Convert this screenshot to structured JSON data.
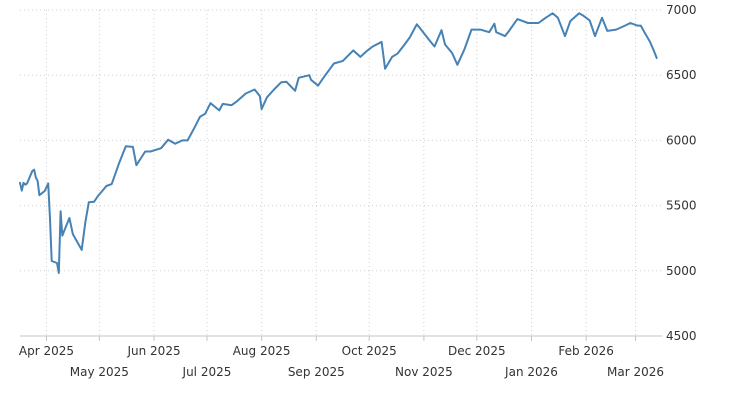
{
  "chart_data": {
    "type": "line",
    "title": "",
    "xlabel": "",
    "ylabel": "",
    "ylim": [
      4500,
      7000
    ],
    "yticks": [
      4500,
      5000,
      5500,
      6000,
      6500,
      7000
    ],
    "grid": true,
    "y_axis_side": "right",
    "series_color": "#4682b4",
    "xlim": [
      "2025-03-17",
      "2026-03-16"
    ],
    "xticks": [
      {
        "date": "2025-04-01",
        "label": "Apr 2025",
        "row": 1
      },
      {
        "date": "2025-05-01",
        "label": "May 2025",
        "row": 2
      },
      {
        "date": "2025-06-01",
        "label": "Jun 2025",
        "row": 1
      },
      {
        "date": "2025-07-01",
        "label": "Jul 2025",
        "row": 2
      },
      {
        "date": "2025-08-01",
        "label": "Aug 2025",
        "row": 1
      },
      {
        "date": "2025-09-01",
        "label": "Sep 2025",
        "row": 2
      },
      {
        "date": "2025-10-01",
        "label": "Oct 2025",
        "row": 1
      },
      {
        "date": "2025-11-01",
        "label": "Nov 2025",
        "row": 2
      },
      {
        "date": "2025-12-01",
        "label": "Dec 2025",
        "row": 1
      },
      {
        "date": "2026-01-01",
        "label": "Jan 2026",
        "row": 2
      },
      {
        "date": "2026-02-01",
        "label": "Feb 2026",
        "row": 1
      },
      {
        "date": "2026-03-01",
        "label": "Mar 2026",
        "row": 2
      }
    ],
    "series": [
      {
        "x": [
          "2025-03-17",
          "2025-03-18",
          "2025-03-19",
          "2025-03-20",
          "2025-03-21",
          "2025-03-24",
          "2025-03-25",
          "2025-03-26",
          "2025-03-27",
          "2025-03-28",
          "2025-03-31",
          "2025-04-02",
          "2025-04-03",
          "2025-04-04",
          "2025-04-07",
          "2025-04-08",
          "2025-04-09",
          "2025-04-10",
          "2025-04-14",
          "2025-04-16",
          "2025-04-21",
          "2025-04-23",
          "2025-04-25",
          "2025-04-28",
          "2025-04-30",
          "2025-05-05",
          "2025-05-08",
          "2025-05-12",
          "2025-05-16",
          "2025-05-20",
          "2025-05-22",
          "2025-05-27",
          "2025-05-30",
          "2025-06-05",
          "2025-06-09",
          "2025-06-13",
          "2025-06-17",
          "2025-06-20",
          "2025-06-24",
          "2025-06-27",
          "2025-06-30",
          "2025-07-03",
          "2025-07-08",
          "2025-07-10",
          "2025-07-15",
          "2025-07-18",
          "2025-07-23",
          "2025-07-28",
          "2025-07-31",
          "2025-08-01",
          "2025-08-04",
          "2025-08-08",
          "2025-08-12",
          "2025-08-15",
          "2025-08-20",
          "2025-08-22",
          "2025-08-28",
          "2025-08-29",
          "2025-09-02",
          "2025-09-05",
          "2025-09-11",
          "2025-09-16",
          "2025-09-22",
          "2025-09-26",
          "2025-09-30",
          "2025-10-03",
          "2025-10-08",
          "2025-10-10",
          "2025-10-14",
          "2025-10-17",
          "2025-10-21",
          "2025-10-24",
          "2025-10-28",
          "2025-10-31",
          "2025-11-04",
          "2025-11-07",
          "2025-11-11",
          "2025-11-13",
          "2025-11-17",
          "2025-11-20",
          "2025-11-24",
          "2025-11-28",
          "2025-12-03",
          "2025-12-08",
          "2025-12-11",
          "2025-12-12",
          "2025-12-17",
          "2025-12-19",
          "2025-12-24",
          "2025-12-30",
          "2026-01-05",
          "2026-01-09",
          "2026-01-13",
          "2026-01-16",
          "2026-01-20",
          "2026-01-23",
          "2026-01-28",
          "2026-01-30",
          "2026-02-03",
          "2026-02-06",
          "2026-02-10",
          "2026-02-13",
          "2026-02-18",
          "2026-02-23",
          "2026-02-26",
          "2026-03-02",
          "2026-03-04",
          "2026-03-06",
          "2026-03-09",
          "2026-03-11",
          "2026-03-13"
        ],
        "values": [
          5675,
          5615,
          5675,
          5660,
          5670,
          5765,
          5775,
          5715,
          5690,
          5580,
          5612,
          5670,
          5400,
          5075,
          5060,
          4983,
          5456,
          5270,
          5405,
          5280,
          5160,
          5370,
          5525,
          5530,
          5570,
          5650,
          5665,
          5820,
          5955,
          5950,
          5810,
          5915,
          5915,
          5940,
          6005,
          5975,
          6000,
          6000,
          6100,
          6180,
          6205,
          6285,
          6230,
          6280,
          6270,
          6300,
          6360,
          6390,
          6340,
          6240,
          6330,
          6390,
          6445,
          6450,
          6380,
          6480,
          6500,
          6465,
          6420,
          6480,
          6590,
          6610,
          6690,
          6640,
          6690,
          6720,
          6755,
          6550,
          6640,
          6665,
          6735,
          6790,
          6890,
          6840,
          6770,
          6720,
          6845,
          6735,
          6670,
          6580,
          6700,
          6850,
          6850,
          6830,
          6895,
          6830,
          6800,
          6835,
          6930,
          6900,
          6900,
          6940,
          6975,
          6940,
          6800,
          6915,
          6975,
          6960,
          6920,
          6800,
          6940,
          6840,
          6850,
          6880,
          6900,
          6880,
          6880,
          6830,
          6760,
          6700,
          6632
        ]
      }
    ]
  }
}
